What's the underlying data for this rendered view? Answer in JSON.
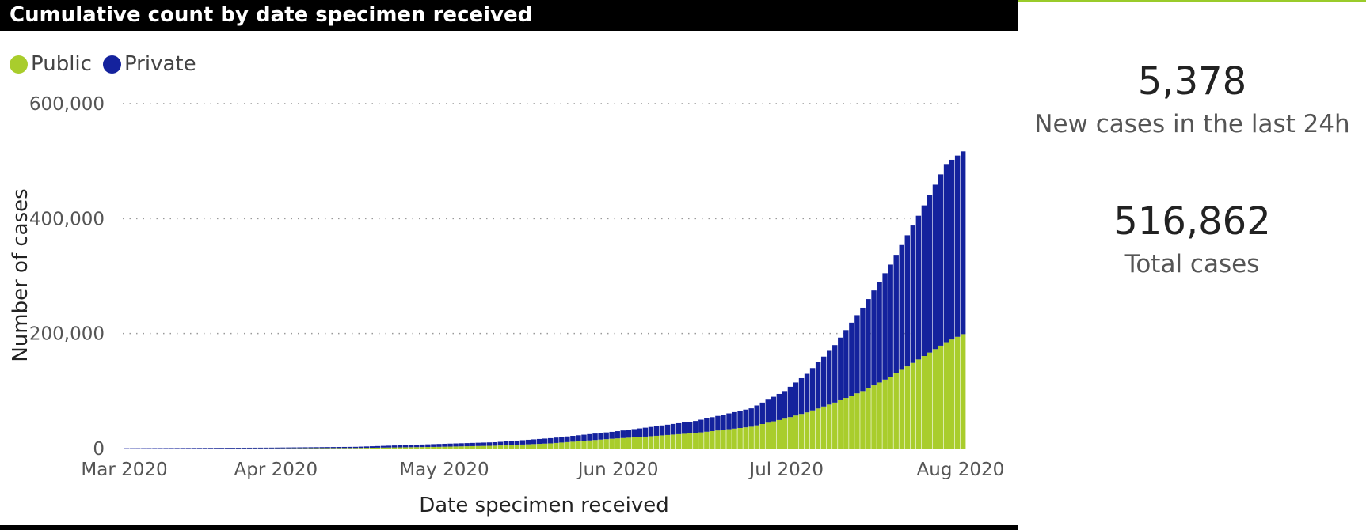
{
  "header": {
    "title": "Cumulative count by date specimen received"
  },
  "legend": {
    "public": "Public",
    "private": "Private"
  },
  "colors": {
    "public": "#a9cd2c",
    "private": "#14229d",
    "header_bg": "#000000",
    "accent": "#9acb2a"
  },
  "kpis": {
    "new_cases_value": "5,378",
    "new_cases_label": "New cases in the last 24h",
    "total_cases_value": "516,862",
    "total_cases_label": "Total cases"
  },
  "chart_data": {
    "type": "bar",
    "stacked": true,
    "title": "Cumulative count by date specimen received",
    "xlabel": "Date specimen received",
    "ylabel": "Number of cases",
    "ylim": [
      0,
      600000
    ],
    "yticks": [
      0,
      200000,
      400000,
      600000
    ],
    "ytick_labels": [
      "0",
      "200,000",
      "400,000",
      "600,000"
    ],
    "xticks": [
      "Mar 2020",
      "Apr 2020",
      "May 2020",
      "Jun 2020",
      "Jul 2020",
      "Aug 2020"
    ],
    "x_start": "2020-03-05",
    "x_end": "2020-08-02",
    "grid": true,
    "legend_position": "top-left",
    "series": [
      {
        "name": "Public",
        "points": [
          [
            "2020-03-05",
            0
          ],
          [
            "2020-03-31",
            300
          ],
          [
            "2020-04-15",
            1000
          ],
          [
            "2020-04-30",
            3000
          ],
          [
            "2020-05-10",
            5000
          ],
          [
            "2020-05-20",
            9000
          ],
          [
            "2020-05-31",
            17000
          ],
          [
            "2020-06-05",
            20000
          ],
          [
            "2020-06-15",
            27000
          ],
          [
            "2020-06-25",
            38000
          ],
          [
            "2020-07-01",
            52000
          ],
          [
            "2020-07-05",
            63000
          ],
          [
            "2020-07-10",
            80000
          ],
          [
            "2020-07-15",
            100000
          ],
          [
            "2020-07-20",
            125000
          ],
          [
            "2020-07-25",
            155000
          ],
          [
            "2020-07-30",
            185000
          ],
          [
            "2020-08-02",
            199000
          ]
        ]
      },
      {
        "name": "Private",
        "points": [
          [
            "2020-03-05",
            500
          ],
          [
            "2020-03-31",
            1300
          ],
          [
            "2020-04-15",
            2000
          ],
          [
            "2020-04-30",
            5000
          ],
          [
            "2020-05-10",
            6000
          ],
          [
            "2020-05-20",
            9000
          ],
          [
            "2020-05-31",
            12000
          ],
          [
            "2020-06-05",
            15000
          ],
          [
            "2020-06-15",
            21000
          ],
          [
            "2020-06-25",
            32000
          ],
          [
            "2020-07-01",
            48000
          ],
          [
            "2020-07-05",
            67000
          ],
          [
            "2020-07-10",
            100000
          ],
          [
            "2020-07-15",
            145000
          ],
          [
            "2020-07-20",
            195000
          ],
          [
            "2020-07-25",
            250000
          ],
          [
            "2020-07-30",
            310000
          ],
          [
            "2020-08-02",
            318000
          ]
        ]
      }
    ]
  }
}
